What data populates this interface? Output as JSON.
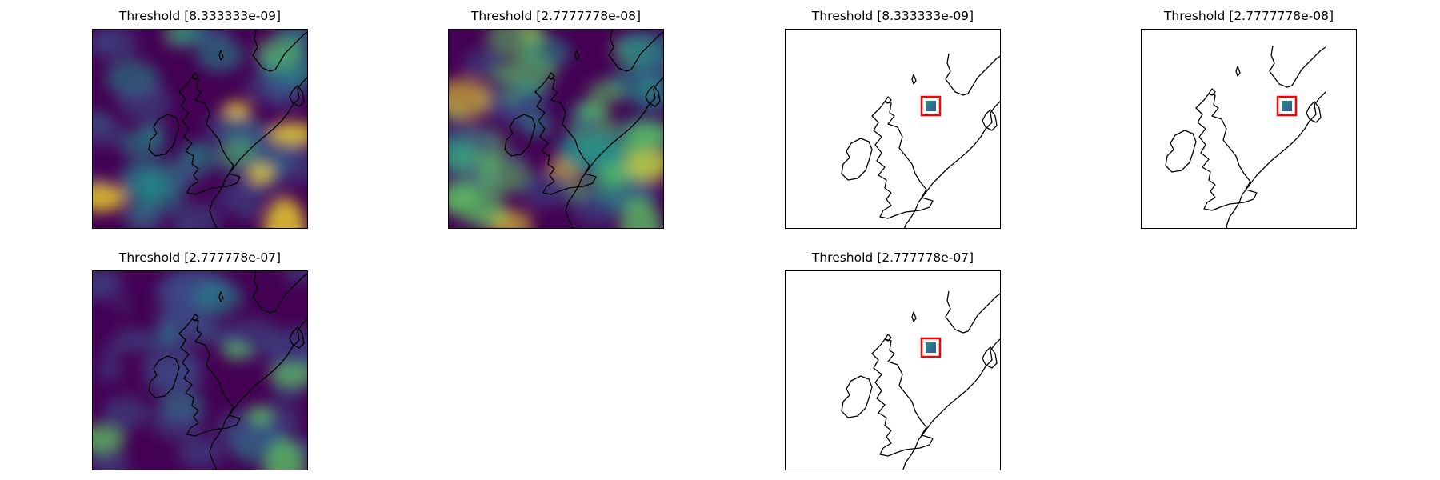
{
  "figure": {
    "panels": [
      {
        "id": "a1",
        "title": "Threshold [8.333333e-09]",
        "kind": "field"
      },
      {
        "id": "a2",
        "title": "Threshold [2.7777778e-08]",
        "kind": "field"
      },
      {
        "id": "a3",
        "title": "Threshold [8.333333e-09]",
        "kind": "inset"
      },
      {
        "id": "a4",
        "title": "Threshold [2.7777778e-08]",
        "kind": "inset"
      },
      {
        "id": "b1",
        "title": "Threshold [2.777778e-07]",
        "kind": "field"
      },
      {
        "id": "b3",
        "title": "Threshold [2.777778e-07]",
        "kind": "inset"
      }
    ]
  },
  "colors": {
    "colormap": "viridis",
    "field_background": "#440154",
    "highlight_box": "#ff0000",
    "coastline": "#000000"
  }
}
